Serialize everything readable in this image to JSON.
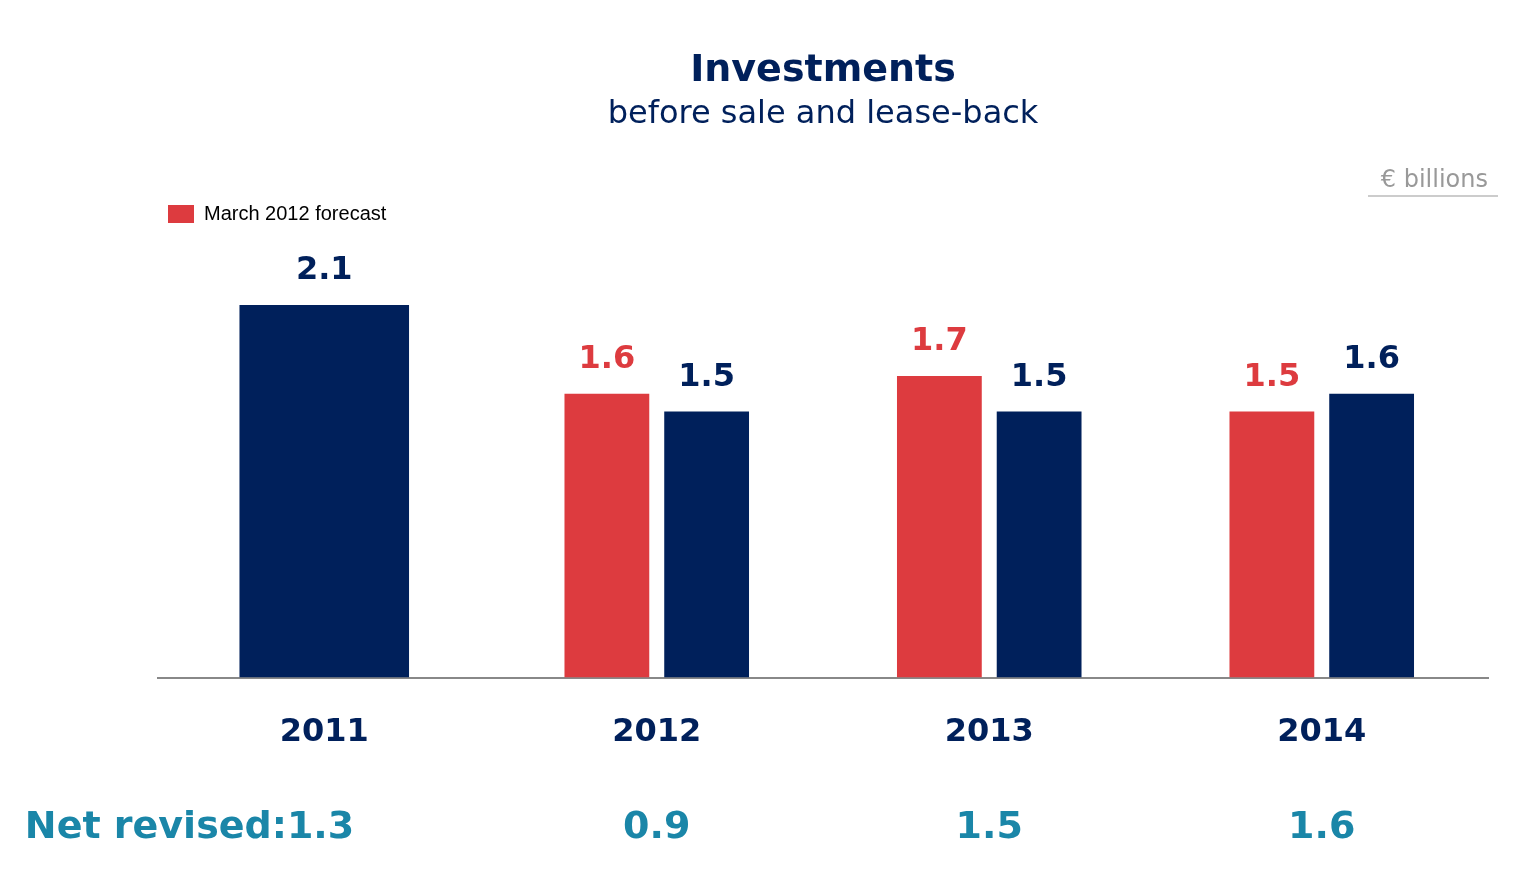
{
  "chart_data": {
    "type": "bar",
    "title": "Investments",
    "subtitle": "before sale and lease-back",
    "categories": [
      "2011",
      "2012",
      "2013",
      "2014"
    ],
    "series": [
      {
        "name": "March 2012 forecast",
        "color": "#dd3b3f",
        "values": [
          null,
          1.6,
          1.7,
          1.5
        ]
      },
      {
        "color": "#00205b",
        "values": [
          2.1,
          1.5,
          1.5,
          1.6
        ]
      }
    ],
    "data_labels": true,
    "legend": "top left",
    "grid": false,
    "annotations": [
      "€ billions",
      "Net revised:1.3",
      "0.9",
      "1.5",
      "1.6"
    ]
  }
}
